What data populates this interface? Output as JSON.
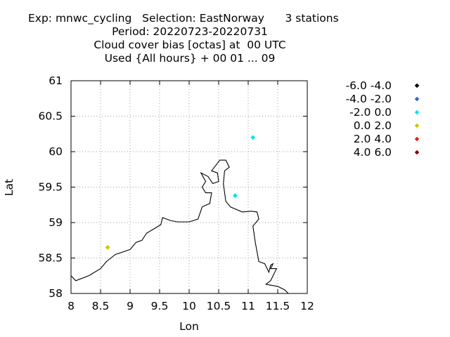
{
  "title": {
    "line1": "Exp: mnwc_cycling   Selection: EastNorway      3 stations",
    "line2": "Period: 20220723-20220731",
    "line3": "Cloud cover bias [octas] at  00 UTC",
    "line4": "Used {All hours} + 00 01 ... 09"
  },
  "chart_data": {
    "type": "scatter",
    "xlabel": "Lon",
    "ylabel": "Lat",
    "xlim": [
      8,
      12
    ],
    "ylim": [
      58,
      61
    ],
    "xticks": [
      "8",
      "8.5",
      "9",
      "9.5",
      "10",
      "10.5",
      "11",
      "11.5",
      "12"
    ],
    "yticks": [
      "58",
      "58.5",
      "59",
      "59.5",
      "60",
      "60.5",
      "61"
    ],
    "grid": true,
    "legend_position": "right",
    "legend": [
      {
        "label": "-6.0 -4.0",
        "color": "#000000"
      },
      {
        "label": "-4.0 -2.0",
        "color": "#3366cc"
      },
      {
        "label": "-2.0 0.0",
        "color": "#00e5ee"
      },
      {
        "label": "0.0 2.0",
        "color": "#c8c800"
      },
      {
        "label": "2.0 4.0",
        "color": "#e8201a"
      },
      {
        "label": "4.0 6.0",
        "color": "#8b0000"
      }
    ],
    "points": [
      {
        "lon": 11.08,
        "lat": 60.2,
        "bin": "-2.0 0.0",
        "color": "#00e5ee"
      },
      {
        "lon": 10.78,
        "lat": 59.38,
        "bin": "-2.0 0.0",
        "color": "#00e5ee"
      },
      {
        "lon": 8.62,
        "lat": 58.65,
        "bin": "0.0 2.0",
        "color": "#c8c800"
      }
    ],
    "coastline": [
      [
        8.0,
        58.25
      ],
      [
        8.08,
        58.18
      ],
      [
        8.3,
        58.25
      ],
      [
        8.5,
        58.35
      ],
      [
        8.6,
        58.45
      ],
      [
        8.75,
        58.55
      ],
      [
        9.0,
        58.62
      ],
      [
        9.1,
        58.72
      ],
      [
        9.2,
        58.75
      ],
      [
        9.28,
        58.85
      ],
      [
        9.42,
        58.92
      ],
      [
        9.52,
        58.97
      ],
      [
        9.55,
        59.07
      ],
      [
        9.68,
        59.03
      ],
      [
        9.8,
        59.01
      ],
      [
        10.0,
        59.01
      ],
      [
        10.15,
        59.05
      ],
      [
        10.22,
        59.22
      ],
      [
        10.35,
        59.27
      ],
      [
        10.38,
        59.42
      ],
      [
        10.28,
        59.42
      ],
      [
        10.22,
        59.5
      ],
      [
        10.28,
        59.58
      ],
      [
        10.2,
        59.7
      ],
      [
        10.32,
        59.65
      ],
      [
        10.4,
        59.55
      ],
      [
        10.5,
        59.58
      ],
      [
        10.48,
        59.7
      ],
      [
        10.38,
        59.73
      ],
      [
        10.52,
        59.88
      ],
      [
        10.62,
        59.88
      ],
      [
        10.68,
        59.78
      ],
      [
        10.6,
        59.73
      ],
      [
        10.58,
        59.55
      ],
      [
        10.62,
        59.3
      ],
      [
        10.7,
        59.22
      ],
      [
        10.9,
        59.15
      ],
      [
        11.05,
        59.16
      ],
      [
        11.15,
        59.15
      ],
      [
        11.18,
        59.05
      ],
      [
        11.08,
        58.95
      ],
      [
        11.12,
        58.72
      ],
      [
        11.18,
        58.45
      ],
      [
        11.28,
        58.42
      ],
      [
        11.35,
        58.3
      ],
      [
        11.38,
        58.4
      ],
      [
        11.42,
        58.42
      ],
      [
        11.38,
        58.35
      ],
      [
        11.48,
        58.35
      ],
      [
        11.38,
        58.18
      ],
      [
        11.3,
        58.13
      ],
      [
        11.5,
        58.1
      ],
      [
        11.62,
        58.05
      ],
      [
        11.68,
        58.0
      ]
    ]
  }
}
